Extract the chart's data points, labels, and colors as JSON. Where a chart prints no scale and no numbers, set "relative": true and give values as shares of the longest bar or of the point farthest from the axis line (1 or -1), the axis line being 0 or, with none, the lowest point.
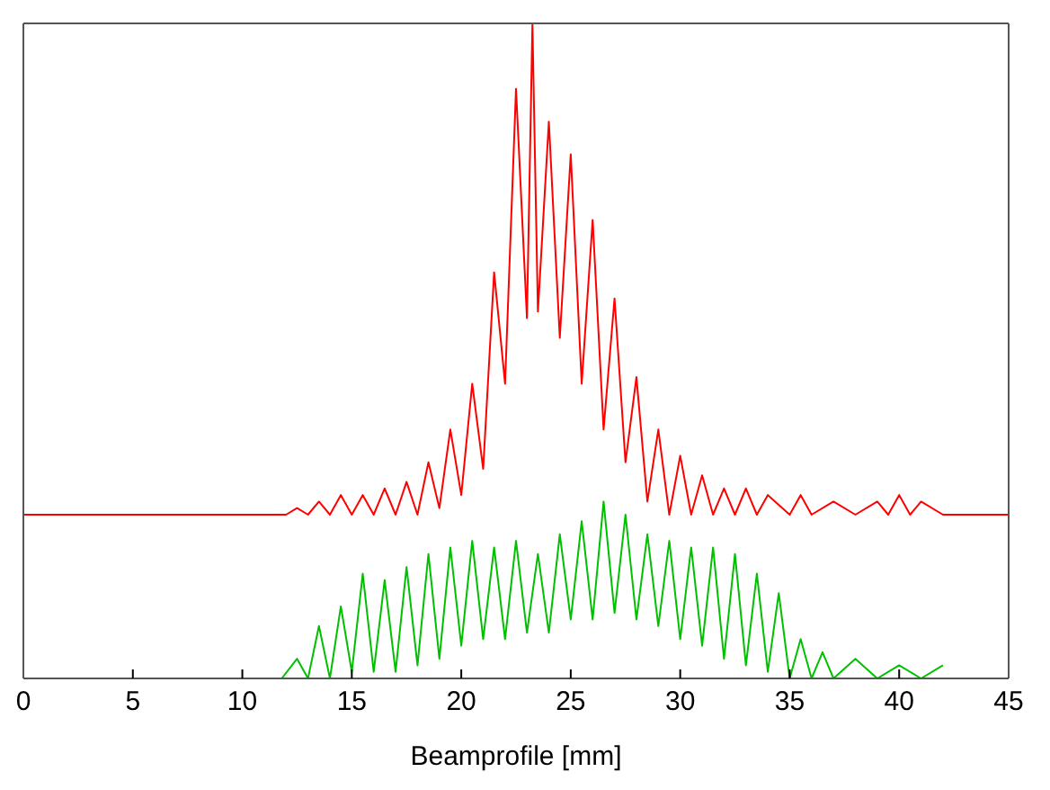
{
  "chart_data": {
    "type": "line",
    "xlabel": "Beamprofile [mm]",
    "relative": true,
    "xlim": [
      0,
      45
    ],
    "xticks": [
      0,
      5,
      10,
      15,
      20,
      25,
      30,
      35,
      40,
      45
    ],
    "legend": false,
    "marker": "none",
    "line_style": "solid",
    "series": [
      {
        "color": "#ff0000",
        "x": [
          0,
          12,
          12.5,
          13,
          13.5,
          14,
          14.5,
          15,
          15.5,
          16,
          16.5,
          17,
          17.5,
          18,
          18.5,
          19,
          19.5,
          20,
          20.5,
          21,
          21.5,
          22,
          22.5,
          23,
          23.25,
          23.5,
          24,
          24.5,
          25,
          25.5,
          26,
          26.5,
          27,
          27.5,
          28,
          28.5,
          29,
          29.5,
          30,
          30.5,
          31,
          31.5,
          32,
          32.5,
          33,
          33.5,
          34,
          35,
          35.5,
          36,
          37,
          38,
          39,
          39.5,
          40,
          40.5,
          41,
          42,
          45
        ],
        "values": [
          0.25,
          0.25,
          0.26,
          0.25,
          0.27,
          0.25,
          0.28,
          0.25,
          0.28,
          0.25,
          0.29,
          0.25,
          0.3,
          0.25,
          0.33,
          0.26,
          0.38,
          0.28,
          0.45,
          0.32,
          0.62,
          0.45,
          0.9,
          0.55,
          1.0,
          0.56,
          0.85,
          0.52,
          0.8,
          0.45,
          0.7,
          0.38,
          0.58,
          0.33,
          0.46,
          0.27,
          0.38,
          0.25,
          0.34,
          0.25,
          0.31,
          0.25,
          0.29,
          0.25,
          0.29,
          0.25,
          0.28,
          0.25,
          0.28,
          0.25,
          0.27,
          0.25,
          0.27,
          0.25,
          0.28,
          0.25,
          0.27,
          0.25,
          0.25
        ]
      },
      {
        "color": "#00c000",
        "x": [
          0,
          11.8,
          12.5,
          13,
          13.5,
          14,
          14.5,
          15,
          15.5,
          16,
          16.5,
          17,
          17.5,
          18,
          18.5,
          19,
          19.5,
          20,
          20.5,
          21,
          21.5,
          22,
          22.5,
          23,
          23.5,
          24,
          24.5,
          25,
          25.5,
          26,
          26.5,
          27,
          27.5,
          28,
          28.5,
          29,
          29.5,
          30,
          30.5,
          31,
          31.5,
          32,
          32.5,
          33,
          33.5,
          34,
          34.5,
          35,
          35.5,
          36,
          36.5,
          37,
          38,
          39,
          40,
          41,
          42
        ],
        "values": [
          0,
          0,
          0.03,
          0,
          0.08,
          0,
          0.11,
          0.01,
          0.16,
          0.01,
          0.15,
          0.01,
          0.17,
          0.02,
          0.19,
          0.03,
          0.2,
          0.05,
          0.21,
          0.06,
          0.2,
          0.06,
          0.21,
          0.07,
          0.19,
          0.07,
          0.22,
          0.09,
          0.24,
          0.09,
          0.27,
          0.1,
          0.25,
          0.09,
          0.22,
          0.08,
          0.21,
          0.06,
          0.2,
          0.05,
          0.2,
          0.03,
          0.19,
          0.02,
          0.16,
          0.01,
          0.13,
          0,
          0.06,
          0,
          0.04,
          0,
          0.03,
          0,
          0.02,
          0,
          0.02
        ]
      }
    ]
  }
}
